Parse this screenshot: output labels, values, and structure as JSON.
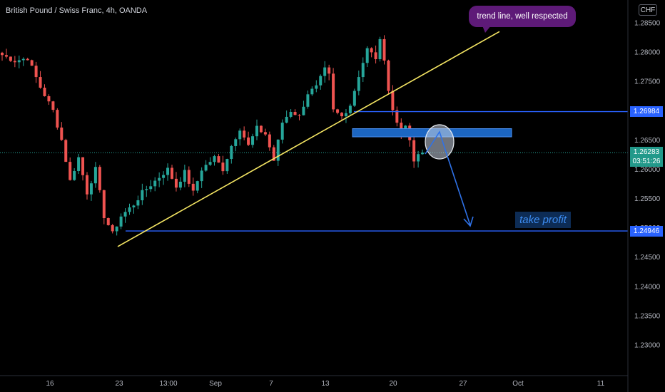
{
  "header": {
    "symbol_title": "British Pound / Swiss Franc, 4h, OANDA",
    "currency": "CHF"
  },
  "annotations": {
    "bubble_text": "trend line, well respected",
    "take_profit_text": "take profit",
    "bubble_color": "#5e1a78",
    "trendline_color": "#f5e663",
    "level_line_color": "#2962ff",
    "zone_color": "#1c66c2"
  },
  "price_badges": {
    "upper_level": "1.26984",
    "current_price": "1.26283",
    "countdown": "03:51:26",
    "lower_level": "1.24946"
  },
  "chart_data": {
    "type": "candlestick",
    "title": "British Pound / Swiss Franc, 4h, OANDA",
    "y_ticks": [
      "1.28500",
      "1.28000",
      "1.27500",
      "1.27000",
      "1.26500",
      "1.26000",
      "1.25500",
      "1.25000",
      "1.24500",
      "1.24000",
      "1.23500",
      "1.23000"
    ],
    "y_range": [
      1.2245,
      1.2877
    ],
    "x_ticks": [
      "16",
      "23",
      "13:00",
      "Sep",
      "7",
      "13",
      "20",
      "27",
      "Oct",
      "11"
    ],
    "up_color": "#26a69a",
    "down_color": "#ef5350",
    "levels": [
      {
        "price": 1.26984
      },
      {
        "price": 1.24946
      }
    ],
    "current_price": 1.26283,
    "resistance_zone": [
      1.26553,
      1.26693
    ],
    "trend_line": [
      [
        1.2468,
        1.2835
      ]
    ],
    "series": [
      {
        "waypoints": [
          [
            0,
            1.2795
          ],
          [
            3,
            1.2785
          ],
          [
            6,
            1.279
          ],
          [
            9,
            1.274
          ],
          [
            12,
            1.27
          ],
          [
            14,
            1.265
          ],
          [
            16,
            1.258
          ],
          [
            18,
            1.262
          ],
          [
            20,
            1.256
          ],
          [
            22,
            1.26
          ],
          [
            24,
            1.252
          ],
          [
            26,
            1.249
          ],
          [
            28,
            1.252
          ],
          [
            31,
            1.254
          ],
          [
            33,
            1.256
          ],
          [
            36,
            1.258
          ],
          [
            39,
            1.26
          ],
          [
            41,
            1.257
          ],
          [
            43,
            1.2595
          ],
          [
            45,
            1.256
          ],
          [
            47,
            1.26
          ],
          [
            50,
            1.262
          ],
          [
            52,
            1.26
          ],
          [
            54,
            1.264
          ],
          [
            56,
            1.267
          ],
          [
            58,
            1.264
          ],
          [
            60,
            1.267
          ],
          [
            62,
            1.266
          ],
          [
            64,
            1.2615
          ],
          [
            66,
            1.268
          ],
          [
            68,
            1.27
          ],
          [
            70,
            1.269
          ],
          [
            72,
            1.273
          ],
          [
            74,
            1.274
          ],
          [
            76,
            1.277
          ],
          [
            77,
            1.276
          ],
          [
            78,
            1.27
          ],
          [
            80,
            1.269
          ],
          [
            82,
            1.271
          ],
          [
            84,
            1.276
          ],
          [
            86,
            1.2805
          ],
          [
            88,
            1.279
          ],
          [
            89,
            1.2818
          ],
          [
            90,
            1.279
          ],
          [
            91,
            1.2735
          ],
          [
            92,
            1.27
          ],
          [
            93,
            1.268
          ],
          [
            94,
            1.266
          ],
          [
            95,
            1.267
          ],
          [
            96,
            1.265
          ],
          [
            97,
            1.261
          ],
          [
            98,
            1.2625
          ],
          [
            99,
            1.2628
          ]
        ]
      }
    ]
  }
}
